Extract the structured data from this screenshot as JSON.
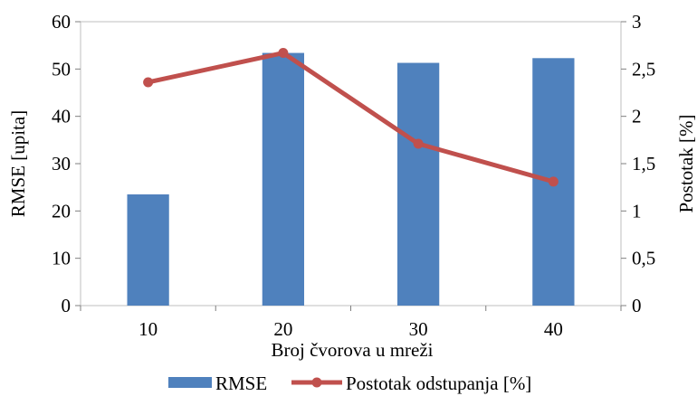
{
  "chart_data": {
    "type": "bar",
    "categories": [
      "10",
      "20",
      "30",
      "40"
    ],
    "xlabel": "Broj čvorova u mreži",
    "ylabel": "RMSE [upita]",
    "ylabel_right": "Postotak [%]",
    "ylim": [
      0,
      60
    ],
    "ylim_right": [
      0,
      3
    ],
    "yticks": [
      "0",
      "10",
      "20",
      "30",
      "40",
      "50",
      "60"
    ],
    "yticks_right": [
      "0",
      "0,5",
      "1",
      "1,5",
      "2",
      "2,5",
      "3"
    ],
    "grid": false,
    "legend_position": "bottom",
    "series": [
      {
        "name": "RMSE",
        "type": "bar",
        "axis": "left",
        "color": "#4f81bd",
        "values": [
          23.5,
          53.4,
          51.3,
          52.3
        ]
      },
      {
        "name": "Postotak odstupanja [%]",
        "type": "line",
        "axis": "right",
        "color": "#c0504d",
        "values": [
          2.36,
          2.67,
          1.71,
          1.31
        ]
      }
    ]
  }
}
